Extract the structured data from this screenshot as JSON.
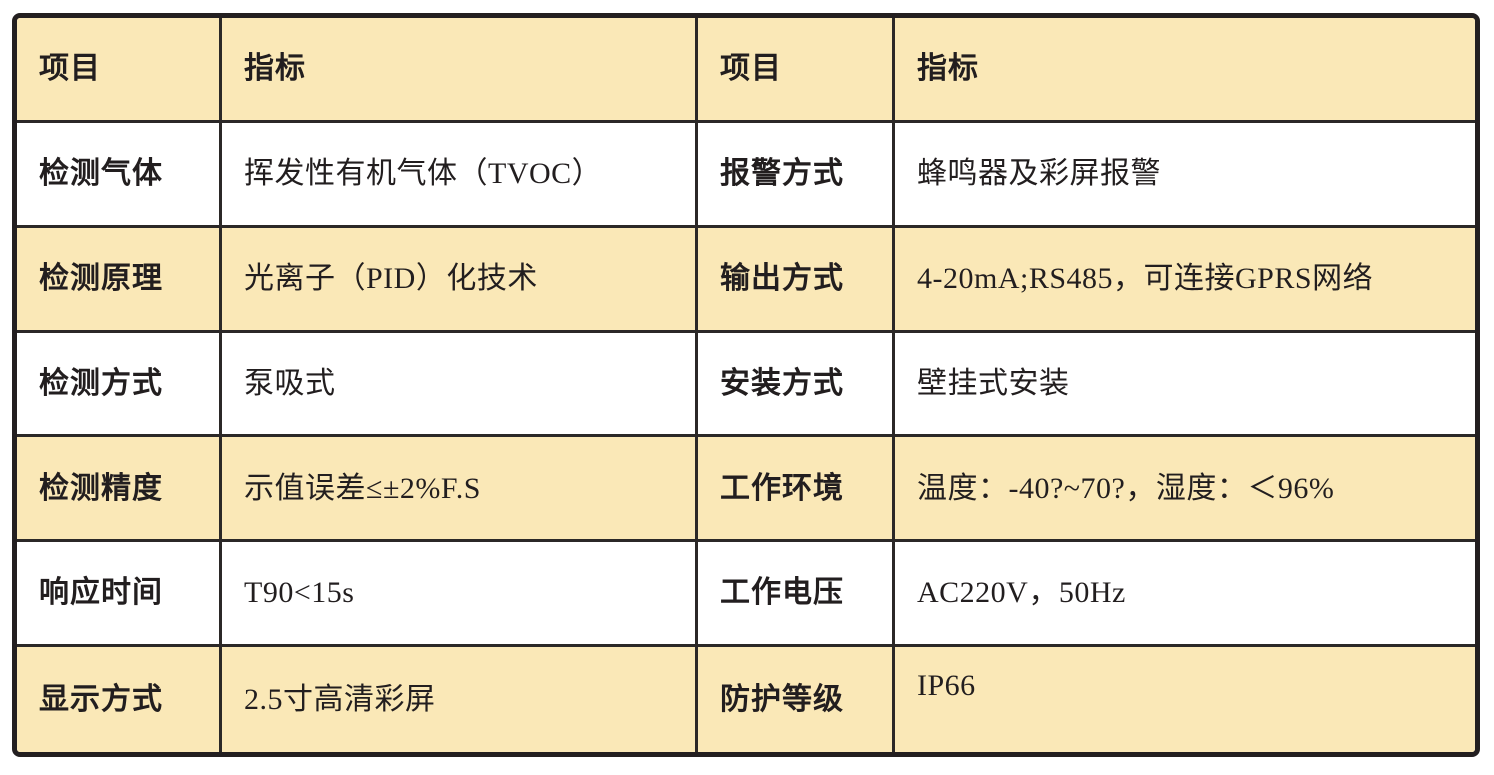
{
  "table": {
    "header": [
      "项目",
      "指标",
      "项目",
      "指标"
    ],
    "rows": [
      [
        "检测气体",
        "挥发性有机气体（TVOC）",
        "报警方式",
        "蜂鸣器及彩屏报警"
      ],
      [
        "检测原理",
        "光离子（PID）化技术",
        "输出方式",
        "4-20mA;RS485，可连接GPRS网络"
      ],
      [
        "检测方式",
        "泵吸式",
        "安装方式",
        "壁挂式安装"
      ],
      [
        "检测精度",
        "示值误差≤±2%F.S",
        "工作环境",
        "温度：-40?~70?，湿度：＜96%"
      ],
      [
        "响应时间",
        "T90<15s",
        "工作电压",
        "AC220V，50Hz"
      ],
      [
        "显示方式",
        "2.5寸高清彩屏",
        "防护等级",
        "IP66"
      ]
    ],
    "colors": {
      "stripe_yellow": "#FAE8B7",
      "row_white": "#FFFFFF",
      "border_dark": "#231F20",
      "text": "#221E1F"
    }
  }
}
